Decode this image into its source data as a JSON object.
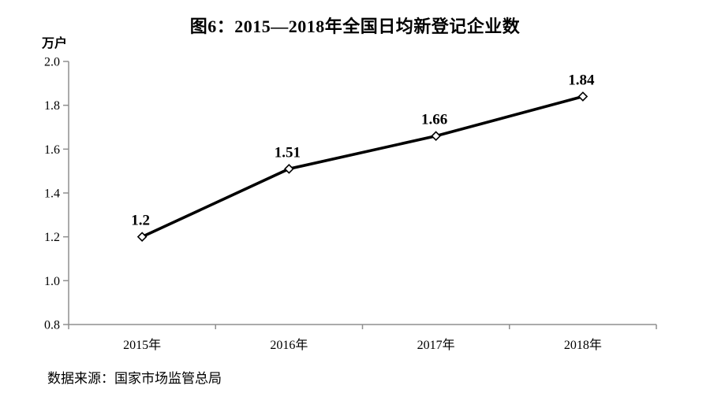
{
  "header": {
    "title": "图6：2015—2018年全国日均新登记企业数"
  },
  "footer": {
    "source": "数据来源：国家市场监管总局"
  },
  "colors": {
    "line": "#000000",
    "marker_fill": "#ffffff",
    "marker_stroke": "#000000",
    "axis": "#8f8f8f",
    "text": "#000000",
    "background": "#ffffff"
  },
  "chart_data": {
    "type": "line",
    "title": "图6：2015—2018年全国日均新登记企业数",
    "unit_label": "万户",
    "categories": [
      "2015年",
      "2016年",
      "2017年",
      "2018年"
    ],
    "series": [
      {
        "name": "全国日均新登记企业数",
        "values": [
          1.2,
          1.51,
          1.66,
          1.84
        ],
        "data_labels": [
          "1.2",
          "1.51",
          "1.66",
          "1.84"
        ]
      }
    ],
    "xlabel": "",
    "ylabel": "万户",
    "ylim": [
      0.8,
      2.0
    ],
    "ytick_labels": [
      "0.8",
      "1.0",
      "1.2",
      "1.4",
      "1.6",
      "1.8",
      "2.0"
    ],
    "grid": false,
    "legend_position": "none",
    "marker": "open-diamond"
  }
}
